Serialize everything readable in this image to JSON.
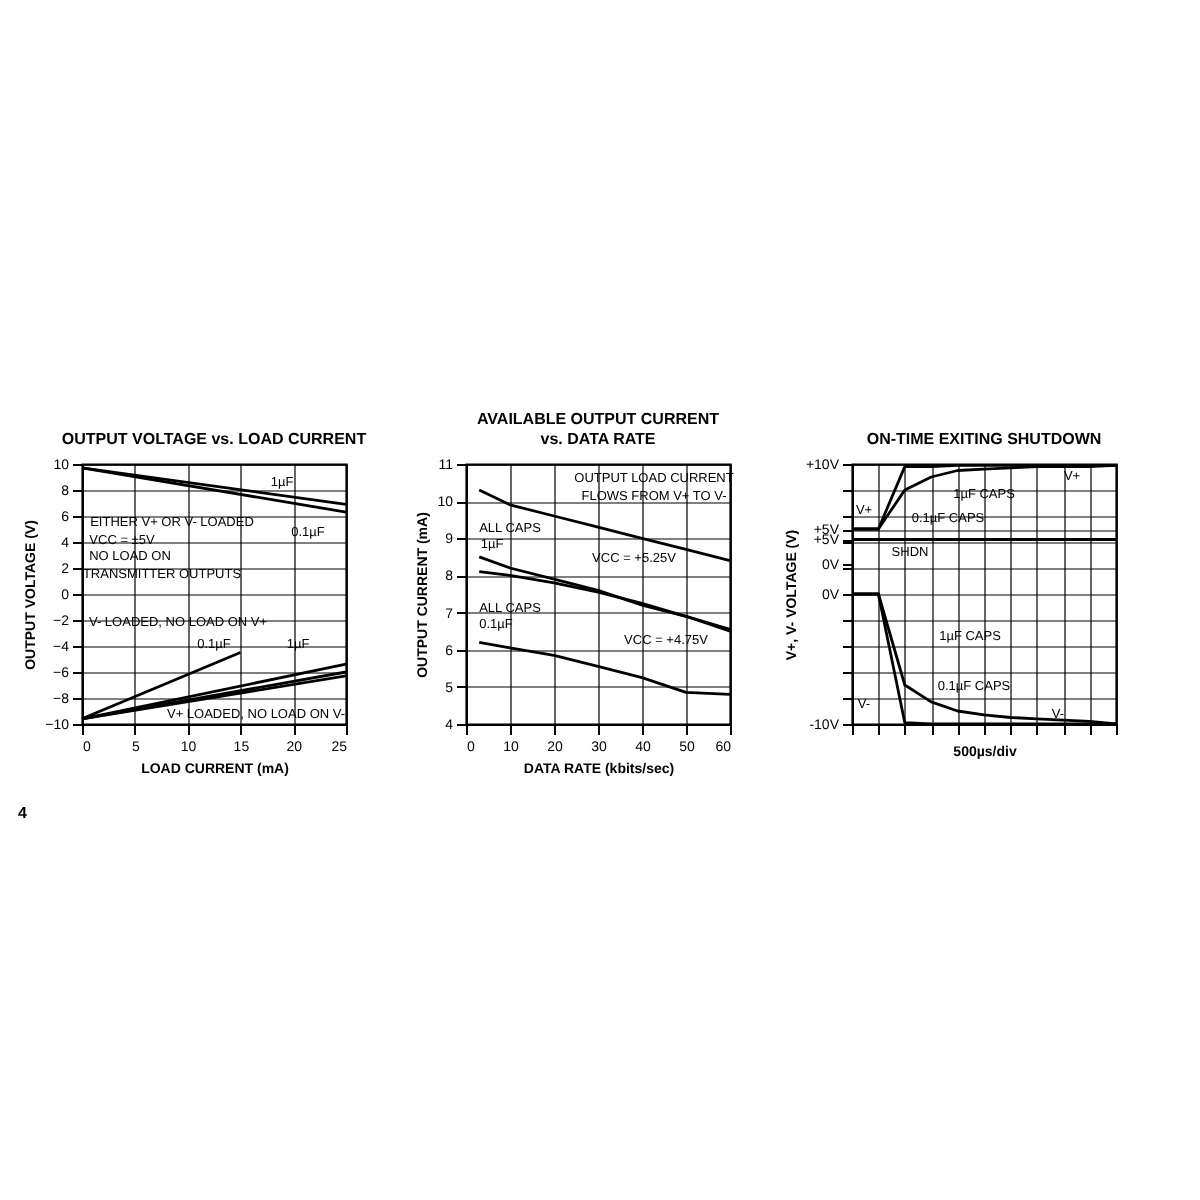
{
  "chart_data": [
    {
      "type": "line",
      "title": "OUTPUT VOLTAGE vs. LOAD CURRENT",
      "xlabel": "LOAD CURRENT (mA)",
      "ylabel": "OUTPUT VOLTAGE (V)",
      "xlim": [
        0,
        25
      ],
      "xticks": [
        0,
        5,
        10,
        15,
        20,
        25
      ],
      "ylim": [
        -10,
        10
      ],
      "yticks": [
        -10,
        -8,
        -6,
        -4,
        -2,
        0,
        2,
        4,
        6,
        8,
        10
      ],
      "grid": true,
      "series": [
        {
          "color": "#000000",
          "x": [
            0,
            25
          ],
          "values": [
            9.7,
            6.9
          ]
        },
        {
          "color": "#000000",
          "x": [
            0,
            25
          ],
          "values": [
            9.7,
            6.3
          ]
        },
        {
          "color": "#000000",
          "x": [
            0,
            15
          ],
          "values": [
            -9.6,
            -4.5
          ]
        },
        {
          "color": "#000000",
          "x": [
            0,
            25
          ],
          "values": [
            -9.6,
            -5.4
          ]
        },
        {
          "color": "#000000",
          "x": [
            0,
            25
          ],
          "values": [
            -9.6,
            -6.0
          ]
        },
        {
          "color": "#000000",
          "x": [
            0,
            25
          ],
          "values": [
            -9.6,
            -6.3
          ]
        }
      ],
      "annotations": [
        "1µF",
        "0.1µF",
        "EITHER V+ OR V- LOADED",
        "VCC = ±5V",
        "NO LOAD ON",
        "TRANSMITTER OUTPUTS",
        "V- LOADED, NO LOAD ON V+",
        "0.1µF",
        "1µF",
        "V+ LOADED, NO LOAD ON V-",
        "4"
      ]
    },
    {
      "type": "line",
      "title": "AVAILABLE OUTPUT CURRENT\nvs. DATA RATE",
      "xlabel": "DATA RATE (kbits/sec)",
      "ylabel": "OUTPUT CURRENT (mA)",
      "xlim": [
        0,
        60
      ],
      "xticks": [
        0,
        10,
        20,
        30,
        40,
        50,
        60
      ],
      "ylim": [
        4,
        11
      ],
      "yticks": [
        4,
        5,
        6,
        7,
        8,
        9,
        10,
        11
      ],
      "grid": true,
      "series": [
        {
          "color": "#000000",
          "x": [
            3,
            10,
            20,
            30,
            40,
            50,
            60
          ],
          "values": [
            10.3,
            9.9,
            9.6,
            9.3,
            9.0,
            8.7,
            8.4
          ]
        },
        {
          "color": "#000000",
          "x": [
            3,
            10,
            20,
            30,
            40,
            50,
            60
          ],
          "values": [
            8.5,
            8.2,
            7.9,
            7.6,
            7.2,
            6.9,
            6.5
          ]
        },
        {
          "color": "#000000",
          "x": [
            3,
            10,
            20,
            30,
            40,
            50,
            60
          ],
          "values": [
            8.1,
            8.0,
            7.8,
            7.55,
            7.25,
            6.9,
            6.55
          ]
        },
        {
          "color": "#000000",
          "x": [
            3,
            10,
            20,
            30,
            40,
            50,
            60
          ],
          "values": [
            6.2,
            6.05,
            5.85,
            5.55,
            5.25,
            4.85,
            4.8
          ]
        }
      ],
      "annotations": [
        "OUTPUT LOAD CURRENT",
        "FLOWS FROM V+ TO V-",
        "ALL CAPS",
        "1µF",
        "VCC = +5.25V",
        "ALL CAPS",
        "0.1µF",
        "VCC = +4.75V"
      ]
    },
    {
      "type": "line",
      "title": "ON-TIME EXITING SHUTDOWN",
      "xlabel": "500µs/div",
      "ylabel": "V+, V- VOLTAGE (V)",
      "tick_labels": "y",
      "categories": [
        null,
        null,
        null,
        null,
        null,
        null,
        null,
        null,
        null,
        null,
        null
      ],
      "ylim": [
        -10,
        10
      ],
      "yticks": [
        {
          "value": 10,
          "label": "+10V"
        },
        {
          "value": 8,
          "label": null
        },
        {
          "value": 6,
          "label": null
        },
        {
          "value": 5,
          "label": "+5V"
        },
        {
          "value": 4,
          "label": null
        },
        {
          "value": 2,
          "label": null
        },
        {
          "value": 0,
          "label": "0V"
        },
        {
          "value": -2,
          "label": null
        },
        {
          "value": -4,
          "label": null
        },
        {
          "value": -6,
          "label": null
        },
        {
          "value": -8,
          "label": null
        },
        {
          "value": -10,
          "label": "-10V"
        }
      ],
      "y2lim": [
        -32.4,
        20.3
      ],
      "y2ticks": [
        {
          "value": 5,
          "label": "+5V"
        },
        {
          "value": 0,
          "label": "0V"
        }
      ],
      "grid": true,
      "series": [
        {
          "color": "#000000",
          "values": [
            5,
            5,
            8,
            9,
            9.5,
            9.6,
            9.7,
            9.8,
            9.8,
            9.8,
            9.9
          ]
        },
        {
          "color": "#000000",
          "values": [
            5,
            5,
            9.8,
            9.8,
            9.9,
            9.9,
            9.9,
            9.9,
            9.9,
            9.9,
            9.9
          ]
        },
        {
          "color": "#000000",
          "values": [
            0,
            0,
            -7,
            -8.3,
            -9,
            -9.3,
            -9.5,
            -9.6,
            -9.7,
            -9.8,
            -10
          ]
        },
        {
          "color": "#000000",
          "values": [
            0,
            0,
            -9.9,
            -10,
            -10,
            -10,
            -10,
            -10,
            -10,
            -10,
            -10
          ]
        },
        {
          "color": "#000000",
          "axis": "y2",
          "values": [
            5,
            5,
            5,
            5,
            5,
            5,
            5,
            5,
            5,
            5,
            5
          ]
        }
      ],
      "annotations": [
        "V+",
        "1µF CAPS",
        "0.1µF CAPS",
        "V+",
        "SHDN",
        "1µF CAPS",
        "0.1µF CAPS",
        "V-",
        "V-"
      ]
    }
  ]
}
